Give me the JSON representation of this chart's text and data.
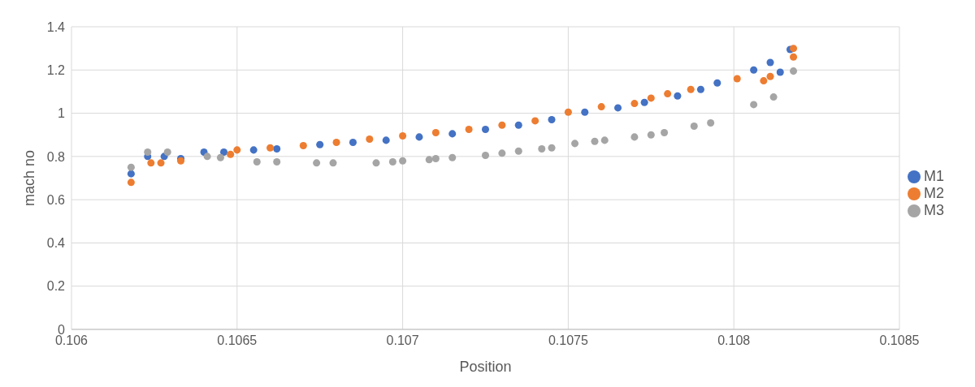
{
  "chart_data": {
    "type": "scatter",
    "xlabel": "Position",
    "ylabel": "mach no",
    "xlim": [
      0.106,
      0.1085
    ],
    "xticks": [
      0.106,
      0.1065,
      0.107,
      0.1075,
      0.108,
      0.1085
    ],
    "ylim": [
      0,
      1.4
    ],
    "yticks": [
      0,
      0.2,
      0.4,
      0.6,
      0.8,
      1,
      1.2,
      1.4
    ],
    "grid": true,
    "legend": "right",
    "marker": "circle",
    "series": [
      {
        "name": "M1",
        "color": "#4472c4",
        "x": [
          0.10618,
          0.10623,
          0.10628,
          0.10633,
          0.1064,
          0.10646,
          0.10655,
          0.10662,
          0.10675,
          0.10685,
          0.10695,
          0.10705,
          0.10715,
          0.10725,
          0.10735,
          0.10745,
          0.10755,
          0.10765,
          0.10773,
          0.10783,
          0.1079,
          0.10795,
          0.10806,
          0.10811,
          0.10814,
          0.10817
        ],
        "values": [
          0.72,
          0.8,
          0.8,
          0.79,
          0.82,
          0.82,
          0.83,
          0.835,
          0.855,
          0.865,
          0.875,
          0.89,
          0.905,
          0.925,
          0.945,
          0.97,
          1.005,
          1.025,
          1.05,
          1.08,
          1.11,
          1.14,
          1.2,
          1.235,
          1.19,
          1.295
        ]
      },
      {
        "name": "M2",
        "color": "#ed7d31",
        "x": [
          0.10618,
          0.10624,
          0.10627,
          0.10633,
          0.10648,
          0.1065,
          0.1066,
          0.1067,
          0.1068,
          0.1069,
          0.107,
          0.1071,
          0.1072,
          0.1073,
          0.1074,
          0.1075,
          0.1076,
          0.1077,
          0.10775,
          0.1078,
          0.10787,
          0.10801,
          0.10809,
          0.10811,
          0.10818,
          0.10818
        ],
        "values": [
          0.68,
          0.77,
          0.77,
          0.78,
          0.81,
          0.83,
          0.84,
          0.85,
          0.865,
          0.88,
          0.895,
          0.91,
          0.925,
          0.945,
          0.965,
          1.005,
          1.03,
          1.045,
          1.07,
          1.09,
          1.11,
          1.16,
          1.15,
          1.17,
          1.26,
          1.3
        ]
      },
      {
        "name": "M3",
        "color": "#a5a5a5",
        "x": [
          0.10618,
          0.10623,
          0.10629,
          0.10641,
          0.10645,
          0.10656,
          0.10662,
          0.10674,
          0.10679,
          0.10692,
          0.10697,
          0.107,
          0.10708,
          0.1071,
          0.10715,
          0.10725,
          0.1073,
          0.10735,
          0.10742,
          0.10745,
          0.10752,
          0.10758,
          0.10761,
          0.1077,
          0.10775,
          0.10779,
          0.10788,
          0.10793,
          0.10806,
          0.10812,
          0.10818
        ],
        "values": [
          0.75,
          0.82,
          0.82,
          0.8,
          0.795,
          0.775,
          0.775,
          0.77,
          0.77,
          0.77,
          0.775,
          0.78,
          0.785,
          0.79,
          0.795,
          0.805,
          0.815,
          0.825,
          0.835,
          0.84,
          0.86,
          0.87,
          0.875,
          0.89,
          0.9,
          0.91,
          0.94,
          0.955,
          1.04,
          1.075,
          1.195
        ]
      }
    ]
  }
}
